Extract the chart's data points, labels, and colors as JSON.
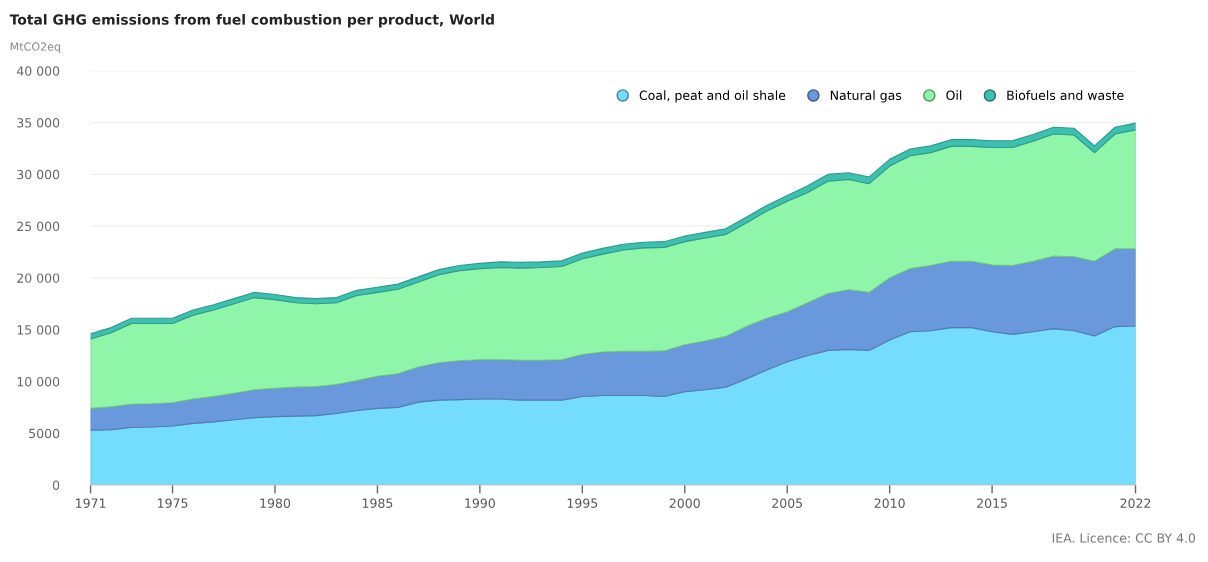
{
  "chart_data": {
    "type": "area",
    "stacked": true,
    "title": "Total GHG emissions from fuel combustion per product, World",
    "ylabel": "MtCO2eq",
    "x": [
      1971,
      1972,
      1973,
      1974,
      1975,
      1976,
      1977,
      1978,
      1979,
      1980,
      1981,
      1982,
      1983,
      1984,
      1985,
      1986,
      1987,
      1988,
      1989,
      1990,
      1991,
      1992,
      1993,
      1994,
      1995,
      1996,
      1997,
      1998,
      1999,
      2000,
      2001,
      2002,
      2003,
      2004,
      2005,
      2006,
      2007,
      2008,
      2009,
      2010,
      2011,
      2012,
      2013,
      2014,
      2015,
      2016,
      2017,
      2018,
      2019,
      2020,
      2021,
      2022
    ],
    "series": [
      {
        "name": "Coal, peat and oil shale",
        "color": "#74dcfc",
        "values": [
          5300,
          5350,
          5550,
          5600,
          5700,
          5950,
          6100,
          6300,
          6500,
          6600,
          6650,
          6700,
          6900,
          7200,
          7400,
          7500,
          8000,
          8200,
          8250,
          8300,
          8300,
          8200,
          8200,
          8200,
          8550,
          8650,
          8650,
          8650,
          8550,
          9000,
          9200,
          9450,
          10250,
          11100,
          11900,
          12500,
          13000,
          13100,
          13000,
          14000,
          14800,
          14900,
          15200,
          15200,
          14800,
          14550,
          14800,
          15100,
          14900,
          14400,
          15300,
          15350
        ]
      },
      {
        "name": "Natural gas",
        "color": "#6a98dc",
        "values": [
          2100,
          2200,
          2250,
          2250,
          2250,
          2350,
          2450,
          2550,
          2700,
          2750,
          2800,
          2800,
          2800,
          2900,
          3100,
          3250,
          3400,
          3600,
          3750,
          3800,
          3800,
          3850,
          3850,
          3900,
          4050,
          4200,
          4250,
          4250,
          4400,
          4550,
          4700,
          4900,
          5050,
          5000,
          4800,
          5100,
          5500,
          5750,
          5600,
          6000,
          6100,
          6300,
          6400,
          6400,
          6450,
          6650,
          6800,
          7000,
          7150,
          7200,
          7500,
          7450
        ]
      },
      {
        "name": "Oil",
        "color": "#8ff5a8",
        "values": [
          6700,
          7150,
          7800,
          7750,
          7650,
          8100,
          8350,
          8650,
          8900,
          8550,
          8150,
          8000,
          7900,
          8200,
          8100,
          8150,
          8200,
          8500,
          8700,
          8800,
          8900,
          8900,
          8950,
          9000,
          9250,
          9450,
          9800,
          10000,
          10000,
          9950,
          9950,
          9850,
          10000,
          10350,
          10700,
          10650,
          10850,
          10650,
          10500,
          10800,
          10900,
          10900,
          11100,
          11100,
          11350,
          11400,
          11600,
          11800,
          11750,
          10500,
          11100,
          11500
        ]
      },
      {
        "name": "Biofuels and waste",
        "color": "#3cc0b0",
        "values": [
          500,
          500,
          500,
          500,
          500,
          500,
          500,
          500,
          500,
          500,
          500,
          500,
          500,
          500,
          500,
          500,
          500,
          500,
          500,
          500,
          550,
          550,
          550,
          550,
          550,
          550,
          550,
          550,
          550,
          550,
          550,
          550,
          550,
          550,
          550,
          650,
          650,
          650,
          650,
          650,
          650,
          650,
          650,
          650,
          650,
          650,
          650,
          650,
          650,
          650,
          650,
          650
        ]
      }
    ],
    "xlim": [
      1971,
      2022
    ],
    "xticks": [
      1971,
      1975,
      1980,
      1985,
      1990,
      1995,
      2000,
      2005,
      2010,
      2015,
      2022
    ],
    "ylim": [
      0,
      40000
    ],
    "yticks": [
      0,
      5000,
      {
        "value": 10000,
        "label": "10 000"
      },
      {
        "value": 15000,
        "label": "15 000"
      },
      {
        "value": 20000,
        "label": "20 000"
      },
      {
        "value": 25000,
        "label": "25 000"
      },
      {
        "value": 30000,
        "label": "30 000"
      },
      {
        "value": 35000,
        "label": "35 000"
      },
      {
        "value": 40000,
        "label": "40 000"
      }
    ],
    "grid": "y",
    "legend": "top right",
    "annotations": [
      "IEA. Licence: CC BY 4.0"
    ]
  }
}
